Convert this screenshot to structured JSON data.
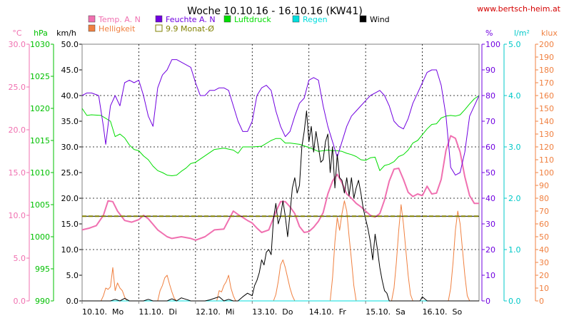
{
  "chart_data": {
    "type": "line",
    "title": "Woche 10.10.16 - 16.10.16 (KW41)",
    "source": "www.bertsch-heim.at",
    "x_labels": [
      "10.10.  Mo",
      "11.10.  Di",
      "12.10.  Mi",
      "13.10.  Do",
      "14.10.  Fr",
      "15.10.  Sa",
      "16.10.  So"
    ],
    "x_unit": "hours since 10.10.16 00:00",
    "x_range": [
      0,
      168
    ],
    "grid": true,
    "legend": [
      {
        "key": "temp",
        "label": "Temp. A. N",
        "color": "#f070b0"
      },
      {
        "key": "feuchte",
        "label": "Feuchte A. N",
        "color": "#7000e0"
      },
      {
        "key": "druck",
        "label": "Luftdruck",
        "color": "#00dd00"
      },
      {
        "key": "regen",
        "label": "Regen",
        "color": "#00dddd"
      },
      {
        "key": "wind",
        "label": "Wind",
        "color": "#000000"
      },
      {
        "key": "hell",
        "label": "Helligkeit",
        "color": "#f08040"
      },
      {
        "key": "monat",
        "label": "9.9 Monat-Ø",
        "color": "#808000"
      }
    ],
    "axes": {
      "temp": {
        "unit": "°C",
        "range": [
          0,
          30
        ],
        "ticks": [
          "0.0",
          "5.0",
          "10.0",
          "15.0",
          "20.0",
          "25.0",
          "30.0"
        ],
        "color": "#f070b0"
      },
      "druck": {
        "unit": "hPa",
        "range": [
          990,
          1030
        ],
        "ticks": [
          "990",
          "995",
          "1000",
          "1005",
          "1010",
          "1015",
          "1020",
          "1025",
          "1030"
        ],
        "color": "#00c000"
      },
      "wind": {
        "unit": "km/h",
        "range": [
          0,
          50
        ],
        "ticks": [
          "0.0",
          "5.0",
          "10.0",
          "15.0",
          "20.0",
          "25.0",
          "30.0",
          "35.0",
          "40.0",
          "45.0",
          "50.0"
        ],
        "color": "#000000"
      },
      "feuchte": {
        "unit": "%",
        "range": [
          0,
          100
        ],
        "ticks": [
          "0",
          "10",
          "20",
          "30",
          "40",
          "50",
          "60",
          "70",
          "80",
          "90",
          "100"
        ],
        "color": "#7000e0"
      },
      "regen": {
        "unit": "l/m²",
        "range": [
          0,
          5
        ],
        "ticks": [
          "0.0",
          "1.0",
          "2.0",
          "3.0",
          "4.0",
          "5.0"
        ],
        "color": "#00c8c8"
      },
      "hell": {
        "unit": "klux",
        "range": [
          0,
          200
        ],
        "ticks": [
          "0",
          "10",
          "20",
          "30",
          "40",
          "50",
          "60",
          "70",
          "80",
          "90",
          "100",
          "110",
          "120",
          "130",
          "140",
          "150",
          "160",
          "170",
          "180",
          "190",
          "200"
        ],
        "color": "#f08040"
      }
    },
    "monthly_average_temp": 9.9,
    "series": [
      {
        "name": "Temp. A. N",
        "key": "temp",
        "axis": "temp",
        "x": [
          0,
          3,
          6,
          9,
          11,
          13,
          15,
          18,
          21,
          24,
          26,
          28,
          32,
          36,
          38,
          42,
          46,
          48,
          52,
          56,
          60,
          64,
          66,
          70,
          72,
          74,
          76,
          79,
          82,
          84,
          86,
          88,
          90,
          92,
          94,
          96,
          98,
          100,
          102,
          104,
          106,
          108,
          110,
          112,
          114,
          116,
          118,
          120,
          122,
          124,
          126,
          128,
          130,
          132,
          134,
          136,
          138,
          140,
          142,
          144,
          146,
          148,
          150,
          152,
          154,
          156,
          158,
          160,
          162,
          164,
          166,
          168
        ],
        "y": [
          8.3,
          8.5,
          8.8,
          10.0,
          11.7,
          11.6,
          10.5,
          9.4,
          9.2,
          9.5,
          10.0,
          9.6,
          8.3,
          7.5,
          7.3,
          7.5,
          7.3,
          7.1,
          7.5,
          8.3,
          8.4,
          10.5,
          10.1,
          9.4,
          9.1,
          8.5,
          8.0,
          8.3,
          10.4,
          11.6,
          11.6,
          11.0,
          10.2,
          8.7,
          8.0,
          8.1,
          8.6,
          9.3,
          10.3,
          12.5,
          14.0,
          14.8,
          13.8,
          12.5,
          12.0,
          11.4,
          11.0,
          10.5,
          10.0,
          9.8,
          10.2,
          11.8,
          14.0,
          15.4,
          15.5,
          14.2,
          12.7,
          12.2,
          12.5,
          12.3,
          13.4,
          12.5,
          12.6,
          14.2,
          17.6,
          19.3,
          19.0,
          17.4,
          14.5,
          12.3,
          11.4,
          11.4
        ]
      },
      {
        "name": "Feuchte A. N",
        "key": "feuchte",
        "axis": "feuchte",
        "x": [
          0,
          2,
          4,
          7,
          9,
          10,
          12,
          14,
          16,
          18,
          20,
          22,
          24,
          26,
          28,
          30,
          32,
          34,
          36,
          38,
          40,
          42,
          44,
          46,
          48,
          50,
          52,
          54,
          56,
          58,
          60,
          62,
          64,
          66,
          68,
          70,
          72,
          74,
          76,
          78,
          80,
          82,
          84,
          86,
          88,
          90,
          92,
          94,
          96,
          98,
          100,
          102,
          104,
          106,
          108,
          110,
          112,
          114,
          116,
          118,
          120,
          122,
          124,
          126,
          128,
          130,
          132,
          134,
          136,
          138,
          140,
          142,
          144,
          146,
          148,
          150,
          152,
          154,
          156,
          158,
          160,
          162,
          164,
          166,
          168
        ],
        "y": [
          80,
          81,
          81,
          80,
          68,
          61,
          76,
          80,
          76,
          85,
          86,
          85,
          86,
          80,
          72,
          68,
          83,
          88,
          90,
          94,
          94,
          93,
          92,
          91,
          85,
          80,
          80,
          82,
          82,
          83,
          83,
          82,
          76,
          70,
          66,
          66,
          70,
          80,
          83,
          84,
          82,
          74,
          68,
          64,
          66,
          72,
          77,
          79,
          86,
          87,
          86,
          76,
          68,
          62,
          56,
          62,
          68,
          72,
          74,
          76,
          78,
          80,
          81,
          82,
          80,
          76,
          70,
          68,
          67,
          71,
          77,
          81,
          85,
          89,
          90,
          90,
          84,
          72,
          52,
          49,
          50,
          58,
          72,
          76,
          80
        ]
      },
      {
        "name": "Luftdruck",
        "key": "druck",
        "axis": "druck",
        "x": [
          0,
          2,
          4,
          8,
          12,
          14,
          16,
          18,
          20,
          22,
          24,
          26,
          28,
          30,
          32,
          34,
          36,
          38,
          40,
          42,
          44,
          46,
          48,
          52,
          56,
          60,
          64,
          66,
          68,
          72,
          76,
          80,
          82,
          84,
          86,
          88,
          90,
          92,
          96,
          100,
          104,
          106,
          108,
          110,
          112,
          114,
          116,
          118,
          120,
          122,
          124,
          126,
          128,
          130,
          132,
          134,
          136,
          138,
          140,
          142,
          144,
          146,
          148,
          150,
          152,
          154,
          156,
          158,
          160,
          162,
          164,
          166,
          168
        ],
        "y": [
          1020.0,
          1018.9,
          1019.0,
          1018.9,
          1018.0,
          1015.6,
          1016.0,
          1015.4,
          1014.3,
          1013.6,
          1013.4,
          1012.6,
          1012.0,
          1011.0,
          1010.3,
          1010.0,
          1009.6,
          1009.5,
          1009.6,
          1010.2,
          1010.7,
          1011.4,
          1011.6,
          1012.6,
          1013.6,
          1013.8,
          1013.5,
          1013.0,
          1014.0,
          1014.0,
          1014.1,
          1015.0,
          1015.3,
          1015.3,
          1014.6,
          1014.6,
          1014.5,
          1014.4,
          1013.9,
          1013.3,
          1013.5,
          1013.4,
          1013.4,
          1013.3,
          1013.0,
          1012.8,
          1012.5,
          1012.0,
          1011.9,
          1012.3,
          1012.4,
          1010.3,
          1011.1,
          1011.3,
          1011.7,
          1012.5,
          1012.8,
          1013.5,
          1014.6,
          1015.0,
          1015.9,
          1016.8,
          1017.5,
          1017.6,
          1018.5,
          1018.8,
          1018.9,
          1018.8,
          1019.0,
          1019.8,
          1020.7,
          1021.5,
          1022.0
        ]
      },
      {
        "name": "Regen",
        "key": "regen",
        "axis": "regen",
        "x": [
          0,
          168
        ],
        "y": [
          0,
          0
        ]
      },
      {
        "name": "Wind",
        "key": "wind",
        "axis": "wind",
        "x": [
          0,
          10,
          12,
          14,
          16,
          18,
          20,
          22,
          24,
          26,
          28,
          30,
          32,
          34,
          36,
          38,
          40,
          42,
          44,
          46,
          48,
          50,
          52,
          54,
          56,
          58,
          60,
          62,
          64,
          66,
          68,
          70,
          72,
          73,
          74,
          75,
          76,
          77,
          78,
          79,
          80,
          81,
          82,
          83,
          84,
          85,
          86,
          87,
          88,
          89,
          90,
          91,
          92,
          93,
          94,
          95,
          96,
          97,
          98,
          99,
          100,
          101,
          102,
          103,
          104,
          105,
          106,
          107,
          108,
          109,
          110,
          111,
          112,
          113,
          114,
          115,
          116,
          117,
          118,
          119,
          120,
          121,
          122,
          123,
          124,
          125,
          126,
          127,
          128,
          129,
          130,
          131,
          132,
          133,
          134,
          135,
          136,
          137,
          138,
          139,
          140,
          141,
          142,
          143,
          144,
          146,
          148,
          150,
          152,
          154,
          156,
          158,
          160,
          162,
          164,
          166,
          168
        ],
        "y": [
          0,
          0,
          0,
          0.3,
          0,
          0.5,
          0,
          0,
          0,
          0,
          0.3,
          0,
          0,
          0,
          0,
          0.4,
          0,
          0.6,
          0.3,
          0,
          0,
          0,
          0,
          0.2,
          0.5,
          0.8,
          0,
          0.3,
          0,
          0,
          0.8,
          1.5,
          1.0,
          3.0,
          4.0,
          5.5,
          8.0,
          7.0,
          9.5,
          10.0,
          9.0,
          16.0,
          19.0,
          15.0,
          16.5,
          19.5,
          16.5,
          12.5,
          17.0,
          22.0,
          24.0,
          21.0,
          22.5,
          30.0,
          33.0,
          37.0,
          31.0,
          34.0,
          29.0,
          33.0,
          30.0,
          27.0,
          27.5,
          31.0,
          32.5,
          25.0,
          30.0,
          22.0,
          28.5,
          24.0,
          23.5,
          21.0,
          24.0,
          20.5,
          24.0,
          20.0,
          22.0,
          23.5,
          21.0,
          18.0,
          16.0,
          14.0,
          11.5,
          8.0,
          13.0,
          10.0,
          6.5,
          4.0,
          2.0,
          1.5,
          0,
          0,
          0,
          0,
          0,
          0,
          0,
          0,
          0,
          0,
          0,
          0,
          0,
          0,
          0.8,
          0,
          0,
          0,
          0,
          0,
          0,
          0,
          0,
          0,
          0,
          0,
          0
        ]
      },
      {
        "name": "Helligkeit",
        "key": "hell",
        "axis": "hell",
        "x": [
          0,
          1,
          2,
          3,
          4,
          5,
          6,
          7,
          8,
          9,
          10,
          11,
          12,
          13,
          14,
          15,
          16,
          17,
          18,
          19,
          20,
          21,
          22,
          23,
          24,
          25,
          26,
          27,
          28,
          29,
          30,
          31,
          32,
          33,
          34,
          35,
          36,
          37,
          38,
          39,
          40,
          41,
          42,
          43,
          44,
          45,
          46,
          47,
          48,
          49,
          50,
          51,
          52,
          53,
          54,
          55,
          56,
          57,
          58,
          59,
          60,
          61,
          62,
          63,
          64,
          65,
          66,
          67,
          68,
          69,
          70,
          71,
          72,
          73,
          74,
          75,
          76,
          77,
          78,
          79,
          80,
          81,
          82,
          83,
          84,
          85,
          86,
          87,
          88,
          89,
          90,
          91,
          92,
          93,
          94,
          95,
          96,
          97,
          98,
          99,
          100,
          101,
          102,
          103,
          104,
          105,
          106,
          107,
          108,
          109,
          110,
          111,
          112,
          113,
          114,
          115,
          116,
          117,
          118,
          119,
          120,
          121,
          122,
          123,
          124,
          125,
          126,
          127,
          128,
          129,
          130,
          131,
          132,
          133,
          134,
          135,
          136,
          137,
          138,
          139,
          140,
          141,
          142,
          143,
          144,
          145,
          146,
          147,
          148,
          149,
          150,
          151,
          152,
          153,
          154,
          155,
          156,
          157,
          158,
          159,
          160,
          161,
          162,
          163,
          164,
          165,
          166,
          167,
          168
        ],
        "y": [
          0,
          0,
          0,
          0,
          0,
          0,
          0,
          0,
          0,
          4,
          10,
          9,
          11,
          26,
          8,
          14,
          10,
          8,
          3,
          0,
          0,
          0,
          0,
          0,
          0,
          0,
          0,
          0,
          0,
          0,
          0,
          0,
          0,
          8,
          12,
          18,
          20,
          13,
          7,
          2,
          0,
          0,
          0,
          0,
          0,
          0,
          0,
          0,
          0,
          0,
          0,
          0,
          0,
          0,
          0,
          0,
          0,
          0,
          8,
          7,
          12,
          15,
          20,
          10,
          4,
          0,
          0,
          0,
          0,
          0,
          0,
          0,
          0,
          0,
          0,
          0,
          0,
          0,
          0,
          0,
          0,
          0,
          5,
          15,
          28,
          32,
          26,
          18,
          10,
          4,
          0,
          0,
          0,
          0,
          0,
          0,
          0,
          0,
          0,
          0,
          0,
          0,
          0,
          0,
          0,
          0,
          18,
          46,
          65,
          55,
          68,
          78,
          70,
          50,
          32,
          12,
          0,
          0,
          0,
          0,
          0,
          0,
          0,
          0,
          0,
          0,
          0,
          0,
          0,
          0,
          0,
          0,
          10,
          30,
          55,
          75,
          60,
          40,
          20,
          5,
          0,
          0,
          0,
          0,
          0,
          0,
          0,
          0,
          0,
          0,
          0,
          0,
          0,
          0,
          0,
          0,
          10,
          30,
          55,
          70,
          60,
          40,
          20,
          4,
          0,
          0,
          0,
          0,
          0
        ]
      }
    ]
  }
}
